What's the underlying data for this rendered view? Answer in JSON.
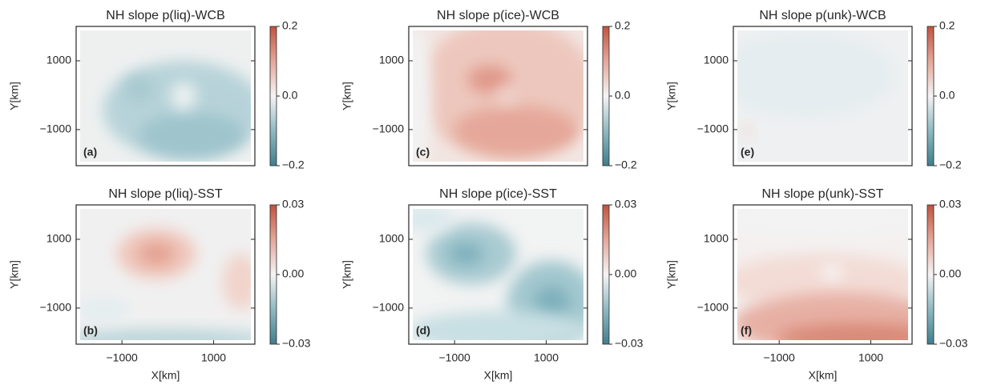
{
  "chart_data": [
    {
      "type": "contour",
      "title": "NH slope p(liq)-WCB",
      "panel_label": "(a)",
      "ylabel": "Y[km]",
      "xlim": [
        -2000,
        1900
      ],
      "ylim": [
        -2050,
        2000
      ],
      "yticks": [
        {
          "value": -1000,
          "label": "−1000"
        },
        1000
      ],
      "clim": [
        -0.2,
        0.2
      ],
      "cticks": [
        {
          "value": -0.2,
          "label": "−0.2"
        },
        {
          "value": 0,
          "label": "0.0"
        },
        0.2
      ]
    },
    {
      "type": "contour",
      "title": "NH slope p(ice)-WCB",
      "panel_label": "(c)",
      "ylabel": "Y[km]",
      "xlim": [
        -2000,
        1900
      ],
      "ylim": [
        -2050,
        2000
      ],
      "yticks": [
        {
          "value": -1000,
          "label": "−1000"
        },
        1000
      ],
      "clim": [
        -0.2,
        0.2
      ],
      "cticks": [
        {
          "value": -0.2,
          "label": "−0.2"
        },
        {
          "value": 0,
          "label": "0.0"
        },
        0.2
      ]
    },
    {
      "type": "contour",
      "title": "NH slope p(unk)-WCB",
      "panel_label": "(e)",
      "ylabel": "Y[km]",
      "xlim": [
        -2000,
        1900
      ],
      "ylim": [
        -2050,
        2000
      ],
      "yticks": [
        {
          "value": -1000,
          "label": "−1000"
        },
        1000
      ],
      "clim": [
        -0.2,
        0.2
      ],
      "cticks": [
        {
          "value": -0.2,
          "label": "−0.2"
        },
        {
          "value": 0,
          "label": "0.0"
        },
        0.2
      ]
    },
    {
      "type": "contour",
      "title": "NH slope p(liq)-SST",
      "panel_label": "(b)",
      "xlabel": "X[km]",
      "ylabel": "Y[km]",
      "xlim": [
        -2000,
        1900
      ],
      "ylim": [
        -2050,
        2000
      ],
      "xticks": [
        {
          "value": -1000,
          "label": "−1000"
        },
        1000
      ],
      "yticks": [
        {
          "value": -1000,
          "label": "−1000"
        },
        1000
      ],
      "clim": [
        -0.03,
        0.03
      ],
      "cticks": [
        {
          "value": -0.03,
          "label": "−0.03"
        },
        {
          "value": 0,
          "label": "0.00"
        },
        0.03
      ]
    },
    {
      "type": "contour",
      "title": "NH slope p(ice)-SST",
      "panel_label": "(d)",
      "xlabel": "X[km]",
      "ylabel": "Y[km]",
      "xlim": [
        -2000,
        1900
      ],
      "ylim": [
        -2050,
        2000
      ],
      "xticks": [
        {
          "value": -1000,
          "label": "−1000"
        },
        1000
      ],
      "yticks": [
        {
          "value": -1000,
          "label": "−1000"
        },
        1000
      ],
      "clim": [
        -0.03,
        0.03
      ],
      "cticks": [
        {
          "value": -0.03,
          "label": "−0.03"
        },
        {
          "value": 0,
          "label": "0.00"
        },
        0.03
      ]
    },
    {
      "type": "contour",
      "title": "NH slope p(unk)-SST",
      "panel_label": "(f)",
      "xlabel": "X[km]",
      "ylabel": "Y[km]",
      "xlim": [
        -2000,
        1900
      ],
      "ylim": [
        -2050,
        2000
      ],
      "xticks": [
        {
          "value": -1000,
          "label": "−1000"
        },
        1000
      ],
      "yticks": [
        {
          "value": -1000,
          "label": "−1000"
        },
        1000
      ],
      "clim": [
        -0.03,
        0.03
      ],
      "cticks": [
        {
          "value": -0.03,
          "label": "−0.03"
        },
        {
          "value": 0,
          "label": "0.00"
        },
        0.03
      ]
    }
  ]
}
